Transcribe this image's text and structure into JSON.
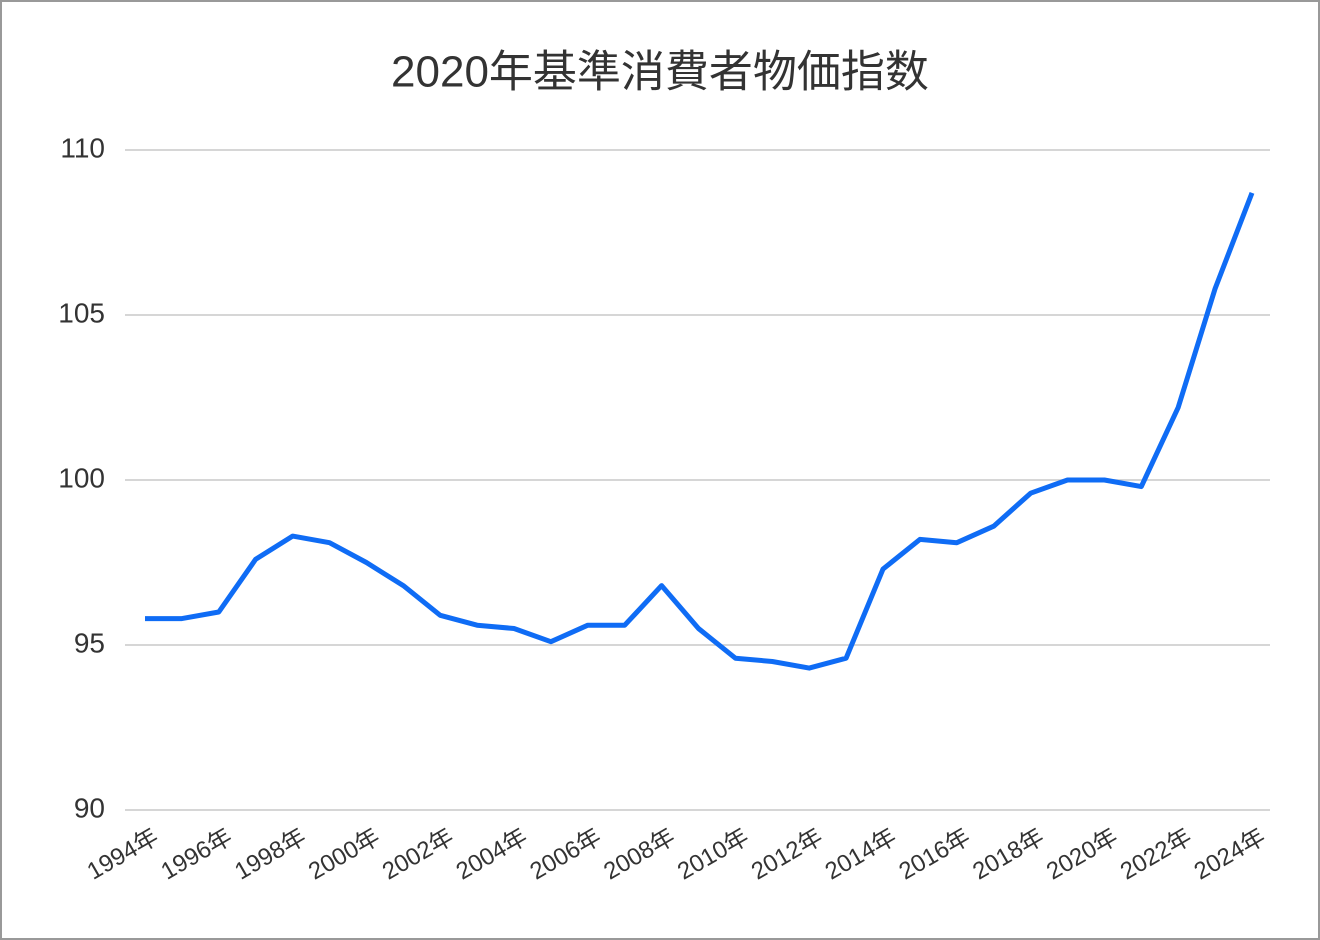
{
  "chart_data": {
    "type": "line",
    "title": "2020年基準消費者物価指数",
    "categories": [
      "1994年",
      null,
      "1996年",
      null,
      "1998年",
      null,
      "2000年",
      null,
      "2002年",
      null,
      "2004年",
      null,
      "2006年",
      null,
      "2008年",
      null,
      "2010年",
      null,
      "2012年",
      null,
      "2014年",
      null,
      "2016年",
      null,
      "2018年",
      null,
      "2020年",
      null,
      "2022年",
      null,
      "2024年"
    ],
    "values": [
      95.8,
      95.8,
      96.0,
      97.6,
      98.3,
      98.1,
      97.5,
      96.8,
      95.9,
      95.6,
      95.5,
      95.1,
      95.6,
      95.6,
      96.8,
      95.5,
      94.6,
      94.5,
      94.3,
      94.6,
      97.3,
      98.2,
      98.1,
      98.6,
      99.6,
      100.0,
      100.0,
      99.8,
      102.2,
      105.8,
      108.7
    ],
    "color": "#0f6cf5",
    "ylim": [
      90,
      110
    ],
    "yticks": [
      90,
      95,
      100,
      105,
      110
    ],
    "grid": true
  }
}
